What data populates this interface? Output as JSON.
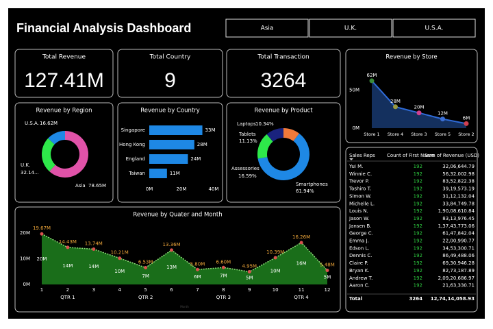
{
  "header": {
    "title": "Financial Analysis Dashboard"
  },
  "filters": [
    "Asia",
    "U.K.",
    "U.S.A."
  ],
  "kpis": [
    {
      "title": "Total Revenue",
      "value": "127.41M"
    },
    {
      "title": "Total Country",
      "value": "9"
    },
    {
      "title": "Total Transaction",
      "value": "3264"
    }
  ],
  "chart_data": [
    {
      "type": "area",
      "title": "Revenue by Store",
      "categories": [
        "Store 1",
        "Store 4",
        "Store 3",
        "Store 5",
        "Store 2"
      ],
      "values": [
        62,
        28,
        20,
        12,
        6
      ],
      "value_labels": [
        "62M",
        "28M",
        "20M",
        "12M",
        "6M"
      ],
      "ylim": [
        0,
        70
      ],
      "yticks": [
        {
          "value": 0,
          "label": "0M"
        },
        {
          "value": 50,
          "label": "50M"
        }
      ],
      "color": "#2f6bd8",
      "fill": "#14305e",
      "marker_colors": [
        "#3a8a3a",
        "#9a9a40",
        "#d04090",
        "#3b6fd4",
        "#d04050"
      ]
    },
    {
      "type": "donut",
      "title": "Revenue by Region",
      "categories": [
        "Asia",
        "U.K.",
        "U.S.A."
      ],
      "values": [
        78.65,
        32.14,
        16.62
      ],
      "value_labels": [
        "78.65M",
        "32.14...",
        "16.62M"
      ],
      "colors": [
        "#e052a8",
        "#2ee84a",
        "#1e88e5"
      ]
    },
    {
      "type": "barh",
      "title": "Revenue by Country",
      "categories": [
        "Singapore",
        "Hong Kong",
        "England",
        "Taiwan"
      ],
      "values": [
        33,
        28,
        24,
        11
      ],
      "value_labels": [
        "33M",
        "28M",
        "24M",
        "11M"
      ],
      "xlim": [
        0,
        40
      ],
      "xticks": [
        {
          "value": 0,
          "label": "0M"
        },
        {
          "value": 20,
          "label": "20M"
        },
        {
          "value": 40,
          "label": "40M"
        }
      ],
      "color": "#1e88e5"
    },
    {
      "type": "donut",
      "title": "Revenue by Product",
      "categories": [
        "Laptops",
        "Smartphones",
        "Assessories",
        "Tablets"
      ],
      "values": [
        10.34,
        61.94,
        16.59,
        11.13
      ],
      "value_labels": [
        "10.34%",
        "61.94%",
        "16.59%",
        "11.13%"
      ],
      "colors": [
        "#f07a3a",
        "#1e88e5",
        "#2ee84a",
        "#1a237e"
      ]
    },
    {
      "type": "area",
      "title": "Revenue by Quater and Month",
      "x": [
        1,
        2,
        3,
        4,
        5,
        6,
        7,
        8,
        9,
        10,
        11,
        12
      ],
      "values": [
        19.67,
        14.43,
        13.74,
        10.21,
        6.53,
        13.36,
        5.8,
        6.6,
        4.95,
        10.39,
        16.26,
        5.48
      ],
      "value_labels": [
        "19.67M",
        "14.43M",
        "13.74M",
        "10.21M",
        "6.53M",
        "13.36M",
        "5.80M",
        "6.60M",
        "4.95M",
        "10.39M",
        "16.26M",
        "5.48M"
      ],
      "inner_labels": [
        "20M",
        "14M",
        "14M",
        "10M",
        "7M",
        "13M",
        "6M",
        "7M",
        "5M",
        "10M",
        "16M",
        "5M"
      ],
      "xlim": [
        1,
        12
      ],
      "xticks": [
        1,
        2,
        3,
        4,
        5,
        6,
        7,
        8,
        9,
        10,
        11,
        12
      ],
      "quarters": [
        "QTR 1",
        "QTR 2",
        "QTR 3",
        "QTR 4"
      ],
      "x_label": "Month",
      "ylim": [
        0,
        20
      ],
      "yticks": [
        {
          "value": 0,
          "label": "0M"
        },
        {
          "value": 10,
          "label": "10M"
        },
        {
          "value": 20,
          "label": "20M"
        }
      ],
      "color": "#8fe07a",
      "fill": "#1a6e1a",
      "marker_color": "#d9534f",
      "label_color": "#f2a93b"
    }
  ],
  "table": {
    "columns": [
      "Sales Reps",
      "Count of First Name",
      "Sum of Revenue (USD)"
    ],
    "rows": [
      [
        "Yui M.",
        "192",
        "32,06,644.79"
      ],
      [
        "Winnie C.",
        "192",
        "56,32,002.98"
      ],
      [
        "Trevor P.",
        "192",
        "83,52,822.38"
      ],
      [
        "Toshiro T.",
        "192",
        "39,19,573.19"
      ],
      [
        "Simon W.",
        "192",
        "31,12,132.04"
      ],
      [
        "Michelle L.",
        "192",
        "33,84,749.78"
      ],
      [
        "Louis N.",
        "192",
        "1,90,08,610.84"
      ],
      [
        "Jason W.",
        "192",
        "83,13,976.45"
      ],
      [
        "Jansen B.",
        "192",
        "1,37,43,773.06"
      ],
      [
        "George C.",
        "192",
        "61,47,842.04"
      ],
      [
        "Emma J.",
        "192",
        "22,00,990.77"
      ],
      [
        "Edson L.",
        "192",
        "34,53,300.71"
      ],
      [
        "Dennis C.",
        "192",
        "86,49,488.06"
      ],
      [
        "Claire P.",
        "192",
        "69,30,946.28"
      ],
      [
        "Bryan K.",
        "192",
        "82,73,187.89"
      ],
      [
        "Andrew T.",
        "192",
        "2,09,20,686.97"
      ],
      [
        "Aaron C.",
        "192",
        "21,63,330.71"
      ]
    ],
    "total": [
      "Total",
      "3264",
      "12,74,14,058.93"
    ]
  }
}
